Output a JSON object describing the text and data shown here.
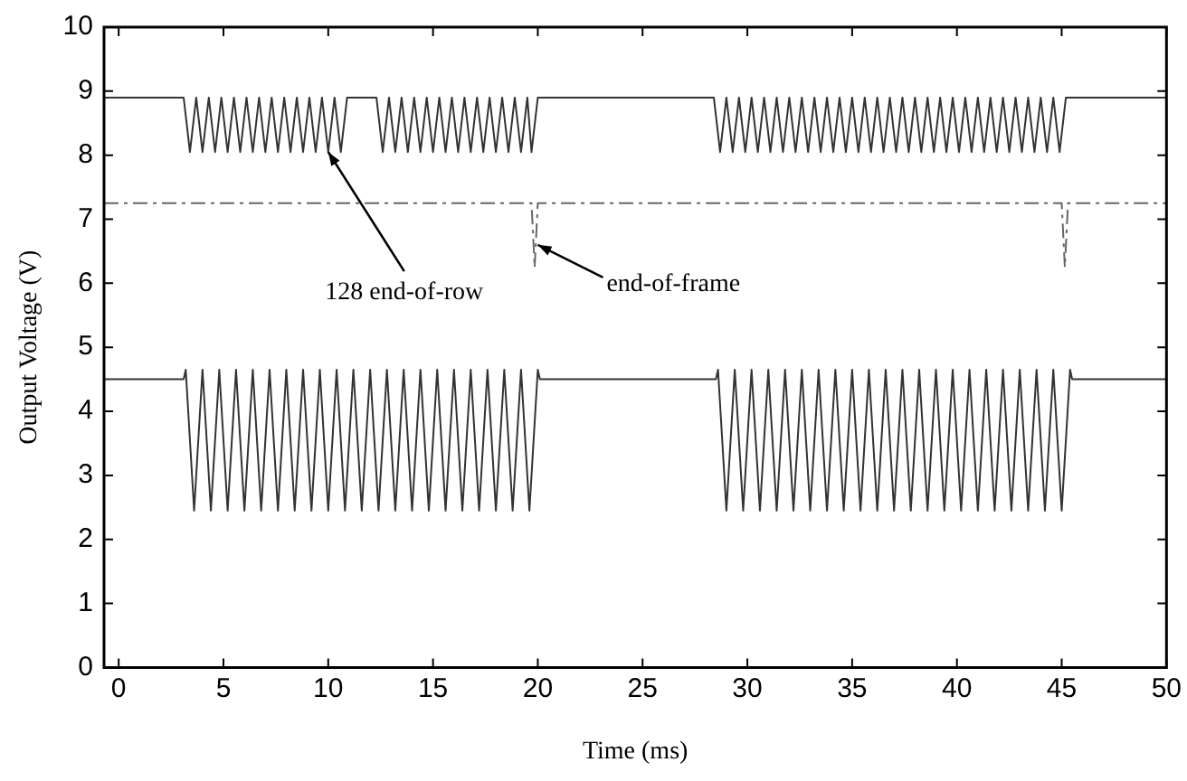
{
  "chart_data": {
    "type": "line",
    "xlabel": "Time (ms)",
    "ylabel": "Output Voltage (V)",
    "xlim": [
      -0.7,
      50
    ],
    "xticks": [
      0,
      5,
      10,
      15,
      20,
      25,
      30,
      35,
      40,
      45,
      50
    ],
    "ylim": [
      0,
      10
    ],
    "yticks": [
      0,
      1,
      2,
      3,
      4,
      5,
      6,
      7,
      8,
      9,
      10
    ],
    "grid": false,
    "legend": false,
    "marker": "none",
    "annotations": [
      {
        "text": "128 end-of-row",
        "x": 10.0,
        "y": 8.05
      },
      {
        "text": "end-of-frame",
        "x": 20.0,
        "y": 6.6
      }
    ],
    "series": [
      {
        "color": "#333333",
        "line_style": "solid",
        "x": [
          -0.7,
          3.1,
          3.4,
          3.7,
          4.0,
          4.3,
          4.6,
          4.9,
          5.2,
          5.5,
          5.8,
          6.1,
          6.4,
          6.7,
          7.0,
          7.3,
          7.6,
          7.9,
          8.2,
          8.5,
          8.8,
          9.1,
          9.4,
          9.7,
          10.0,
          10.3,
          10.6,
          10.9,
          12.3,
          12.6,
          12.9,
          13.2,
          13.5,
          13.8,
          14.1,
          14.4,
          14.7,
          15.0,
          15.3,
          15.6,
          15.9,
          16.2,
          16.5,
          16.8,
          17.1,
          17.4,
          17.7,
          18.0,
          18.3,
          18.6,
          18.9,
          19.2,
          19.5,
          19.7,
          20.0,
          28.4,
          28.7,
          29.0,
          29.3,
          29.6,
          29.9,
          30.2,
          30.5,
          30.8,
          31.1,
          31.4,
          31.7,
          32.0,
          32.3,
          32.6,
          32.9,
          33.2,
          33.5,
          33.8,
          34.1,
          34.4,
          34.7,
          35.0,
          35.3,
          35.6,
          35.9,
          36.2,
          36.5,
          36.8,
          37.1,
          37.4,
          37.7,
          38.0,
          38.3,
          38.6,
          38.9,
          39.2,
          39.5,
          39.8,
          40.1,
          40.4,
          40.7,
          41.0,
          41.3,
          41.6,
          41.9,
          42.2,
          42.5,
          42.8,
          43.1,
          43.4,
          43.7,
          44.0,
          44.3,
          44.6,
          44.9,
          45.2,
          50
        ],
        "values": [
          8.9,
          8.9,
          8.05,
          8.9,
          8.05,
          8.9,
          8.05,
          8.9,
          8.05,
          8.9,
          8.05,
          8.9,
          8.05,
          8.9,
          8.05,
          8.9,
          8.05,
          8.9,
          8.05,
          8.9,
          8.05,
          8.9,
          8.05,
          8.9,
          8.05,
          8.9,
          8.05,
          8.9,
          8.9,
          8.05,
          8.9,
          8.05,
          8.9,
          8.05,
          8.9,
          8.05,
          8.9,
          8.05,
          8.9,
          8.05,
          8.9,
          8.05,
          8.9,
          8.05,
          8.9,
          8.05,
          8.9,
          8.05,
          8.9,
          8.05,
          8.9,
          8.05,
          8.9,
          8.05,
          8.9,
          8.9,
          8.05,
          8.9,
          8.05,
          8.9,
          8.05,
          8.9,
          8.05,
          8.9,
          8.05,
          8.9,
          8.05,
          8.9,
          8.05,
          8.9,
          8.05,
          8.9,
          8.05,
          8.9,
          8.05,
          8.9,
          8.05,
          8.9,
          8.05,
          8.9,
          8.05,
          8.9,
          8.05,
          8.9,
          8.05,
          8.9,
          8.05,
          8.9,
          8.05,
          8.9,
          8.05,
          8.9,
          8.05,
          8.9,
          8.05,
          8.9,
          8.05,
          8.9,
          8.05,
          8.9,
          8.05,
          8.9,
          8.05,
          8.9,
          8.05,
          8.9,
          8.05,
          8.9,
          8.05,
          8.9,
          8.05,
          8.9,
          8.9
        ]
      },
      {
        "color": "#666666",
        "line_style": "dashed",
        "x": [
          -0.7,
          19.7,
          19.85,
          20.0,
          45.0,
          45.15,
          45.3,
          50
        ],
        "values": [
          7.25,
          7.25,
          6.25,
          7.25,
          7.25,
          6.25,
          7.25,
          7.25
        ]
      },
      {
        "color": "#333333",
        "line_style": "solid",
        "x": [
          -0.7,
          3.1,
          3.2,
          3.6,
          4.0,
          4.4,
          4.8,
          5.2,
          5.6,
          6.0,
          6.4,
          6.8,
          7.2,
          7.6,
          8.0,
          8.4,
          8.8,
          9.2,
          9.6,
          10.0,
          10.4,
          10.8,
          11.2,
          11.6,
          12.0,
          12.4,
          12.8,
          13.2,
          13.6,
          14.0,
          14.4,
          14.8,
          15.2,
          15.6,
          16.0,
          16.4,
          16.8,
          17.2,
          17.6,
          18.0,
          18.4,
          18.8,
          19.2,
          19.6,
          20.0,
          20.1,
          28.5,
          28.6,
          29.0,
          29.4,
          29.8,
          30.2,
          30.6,
          31.0,
          31.4,
          31.8,
          32.2,
          32.6,
          33.0,
          33.4,
          33.8,
          34.2,
          34.6,
          35.0,
          35.4,
          35.8,
          36.2,
          36.6,
          37.0,
          37.4,
          37.8,
          38.2,
          38.6,
          39.0,
          39.4,
          39.8,
          40.2,
          40.6,
          41.0,
          41.4,
          41.8,
          42.2,
          42.6,
          43.0,
          43.4,
          43.8,
          44.2,
          44.6,
          45.0,
          45.4,
          45.5,
          50
        ],
        "values": [
          4.5,
          4.5,
          4.65,
          2.45,
          4.65,
          2.45,
          4.65,
          2.45,
          4.65,
          2.45,
          4.65,
          2.45,
          4.65,
          2.45,
          4.65,
          2.45,
          4.65,
          2.45,
          4.65,
          2.45,
          4.65,
          2.45,
          4.65,
          2.45,
          4.65,
          2.45,
          4.65,
          2.45,
          4.65,
          2.45,
          4.65,
          2.45,
          4.65,
          2.45,
          4.65,
          2.45,
          4.65,
          2.45,
          4.65,
          2.45,
          4.65,
          2.45,
          4.65,
          2.45,
          4.65,
          4.5,
          4.5,
          4.65,
          2.45,
          4.65,
          2.45,
          4.65,
          2.45,
          4.65,
          2.45,
          4.65,
          2.45,
          4.65,
          2.45,
          4.65,
          2.45,
          4.65,
          2.45,
          4.65,
          2.45,
          4.65,
          2.45,
          4.65,
          2.45,
          4.65,
          2.45,
          4.65,
          2.45,
          4.65,
          2.45,
          4.65,
          2.45,
          4.65,
          2.45,
          4.65,
          2.45,
          4.65,
          2.45,
          4.65,
          2.45,
          4.65,
          2.45,
          4.65,
          2.45,
          4.65,
          4.5,
          4.5
        ]
      }
    ]
  }
}
